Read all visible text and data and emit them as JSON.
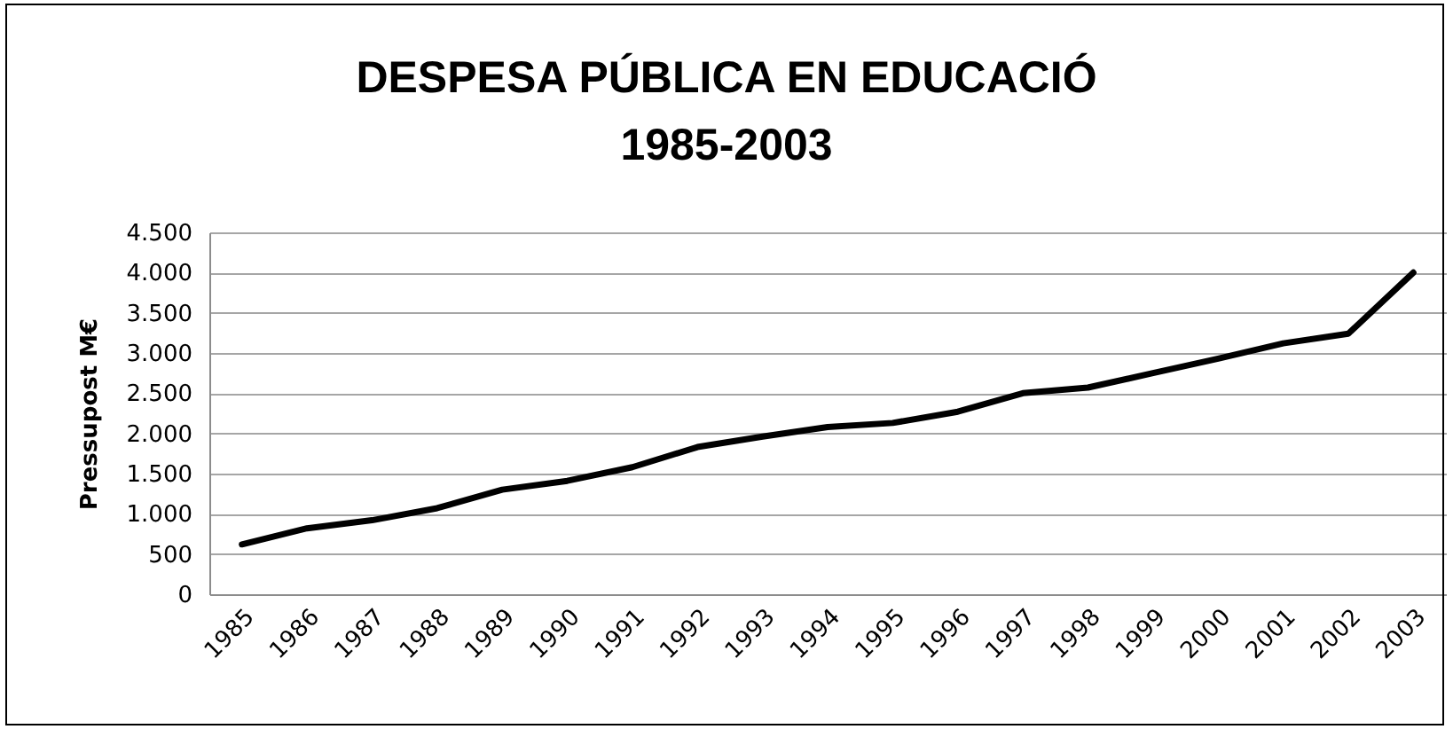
{
  "chart_data": {
    "type": "line",
    "title": "DESPESA PÚBLICA EN EDUCACIÓ\n1985-2003",
    "ylabel": "Pressupost M€",
    "categories": [
      "1985",
      "1986",
      "1987",
      "1988",
      "1989",
      "1990",
      "1991",
      "1992",
      "1993",
      "1994",
      "1995",
      "1996",
      "1997",
      "1998",
      "1999",
      "2000",
      "2001",
      "2002",
      "2003"
    ],
    "values": [
      620,
      820,
      920,
      1070,
      1300,
      1410,
      1580,
      1830,
      1960,
      2080,
      2130,
      2270,
      2500,
      2570,
      2750,
      2930,
      3120,
      3240,
      4000
    ],
    "color": "#000000",
    "ylim": [
      0,
      4500
    ],
    "yticks": [
      0,
      500,
      {
        "value": 1000,
        "label": "1.000"
      },
      {
        "value": 1500,
        "label": "1.500"
      },
      {
        "value": 2000,
        "label": "2.000"
      },
      {
        "value": 2500,
        "label": "2.500"
      },
      {
        "value": 3000,
        "label": "3.000"
      },
      {
        "value": 3500,
        "label": "3.500"
      },
      {
        "value": 4000,
        "label": "4.000"
      },
      {
        "value": 4500,
        "label": "4.500"
      }
    ],
    "grid": "y"
  }
}
